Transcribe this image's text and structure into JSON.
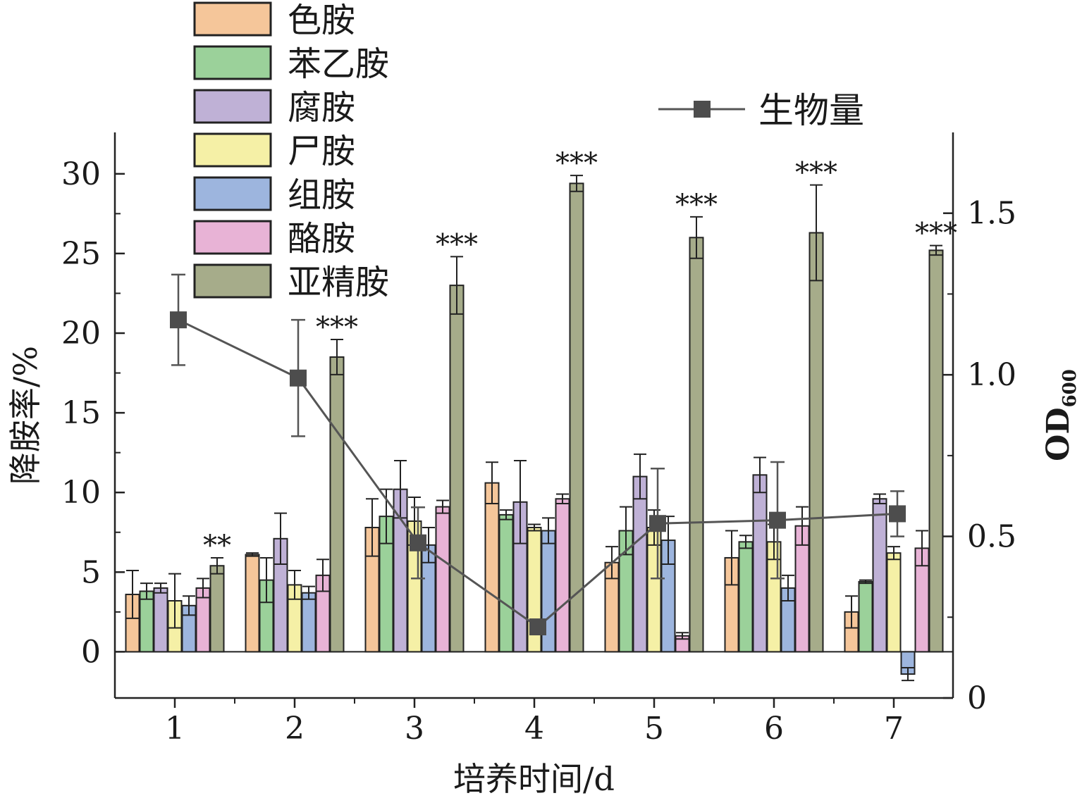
{
  "chart_data": {
    "type": "bar",
    "title": "",
    "xlabel": "培养时间/d",
    "ylabel": "降胺率/%",
    "y2label": "OD",
    "y2label_sub": "600",
    "categories": [
      "1",
      "2",
      "3",
      "4",
      "5",
      "6",
      "7"
    ],
    "ylim": [
      -2.9,
      32.6
    ],
    "yticks": [
      "0",
      "5",
      "10",
      "15",
      "20",
      "25",
      "30"
    ],
    "y2lim": [
      0,
      1.75
    ],
    "y2ticks": [
      "0",
      "0.5",
      "1.0",
      "1.5"
    ],
    "grid": false,
    "legend_position": "top-left",
    "series": [
      {
        "name": "色胺",
        "color": "#F5C69A",
        "values": [
          3.6,
          6.1,
          7.8,
          10.6,
          5.6,
          5.9,
          2.5
        ],
        "errors": [
          1.5,
          0.1,
          1.8,
          1.3,
          1.0,
          1.7,
          1.0
        ]
      },
      {
        "name": "苯乙胺",
        "color": "#9BD19A",
        "values": [
          3.8,
          4.5,
          8.5,
          8.6,
          7.6,
          6.9,
          4.4
        ],
        "errors": [
          0.5,
          1.4,
          1.7,
          0.3,
          1.5,
          0.4,
          0.1
        ]
      },
      {
        "name": "腐胺",
        "color": "#BFB1D6",
        "values": [
          4.0,
          7.1,
          10.2,
          9.4,
          11.0,
          11.1,
          9.6
        ],
        "errors": [
          0.3,
          1.6,
          1.8,
          2.6,
          1.4,
          1.1,
          0.3
        ]
      },
      {
        "name": "尸胺",
        "color": "#F5F0A6",
        "values": [
          3.2,
          4.2,
          8.2,
          7.8,
          7.8,
          6.9,
          6.2
        ],
        "errors": [
          1.7,
          0.9,
          1.5,
          0.2,
          1.1,
          1.1,
          0.4
        ]
      },
      {
        "name": "组胺",
        "color": "#9DB5DE",
        "values": [
          2.9,
          3.7,
          6.7,
          7.6,
          7.0,
          4.0,
          -1.4
        ],
        "errors": [
          0.6,
          0.4,
          1.1,
          0.8,
          1.5,
          0.8,
          0.4
        ]
      },
      {
        "name": "酪胺",
        "color": "#E8B3D6",
        "values": [
          4.0,
          4.8,
          9.1,
          9.6,
          1.0,
          7.9,
          6.5
        ],
        "errors": [
          0.6,
          1.0,
          0.4,
          0.3,
          0.2,
          1.2,
          1.1
        ]
      },
      {
        "name": "亚精胺",
        "color": "#A6AC8A",
        "values": [
          5.4,
          18.5,
          23.0,
          29.4,
          26.0,
          26.3,
          25.2
        ],
        "errors": [
          0.5,
          1.1,
          1.8,
          0.5,
          1.3,
          3.0,
          0.3
        ]
      }
    ],
    "annotations": [
      {
        "category": "1",
        "text": "**"
      },
      {
        "category": "2",
        "text": "***"
      },
      {
        "category": "3",
        "text": "***"
      },
      {
        "category": "4",
        "text": "***"
      },
      {
        "category": "5",
        "text": "***"
      },
      {
        "category": "6",
        "text": "***"
      },
      {
        "category": "7",
        "text": "***"
      }
    ],
    "line_series": {
      "name": "生物量",
      "color": "#555555",
      "axis": "right",
      "values": [
        1.17,
        0.99,
        0.48,
        0.22,
        0.54,
        0.55,
        0.57
      ],
      "errors": [
        0.14,
        0.18,
        0.11,
        0.0,
        0.17,
        0.18,
        0.07
      ]
    }
  }
}
